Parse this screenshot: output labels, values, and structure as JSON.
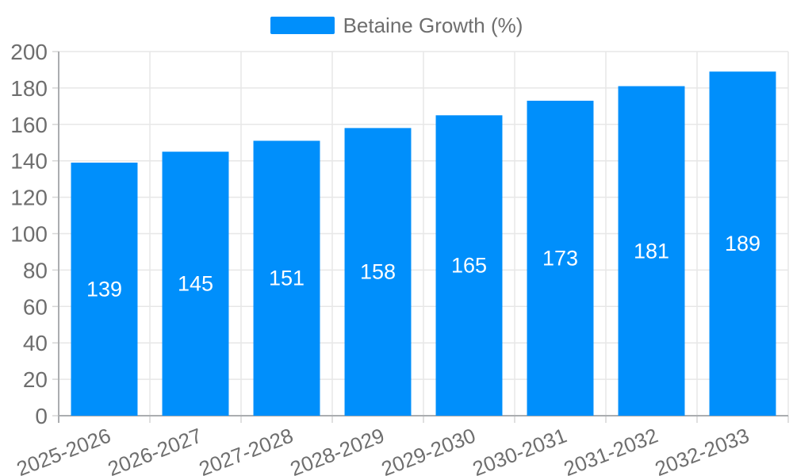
{
  "chart_data": {
    "type": "bar",
    "title": "",
    "xlabel": "",
    "ylabel": "",
    "categories": [
      "2025-2026",
      "2026-2027",
      "2027-2028",
      "2028-2029",
      "2029-2030",
      "2030-2031",
      "2031-2032",
      "2032-2033"
    ],
    "series": [
      {
        "name": "Betaine Growth (%)",
        "color": "#008FFB",
        "values": [
          139,
          145,
          151,
          158,
          165,
          173,
          181,
          189
        ]
      }
    ],
    "ylim": [
      0,
      200
    ],
    "yticks": [
      0,
      20,
      40,
      60,
      80,
      100,
      120,
      140,
      160,
      180,
      200
    ],
    "x_label_rotation_deg": -21,
    "grid": true,
    "legend_position": "top",
    "value_label_position": "inside-center",
    "colors": {
      "bar": "#008FFB",
      "value_label": "#FFFFFF",
      "axis_text": "#6E6E6E",
      "grid": "#E7E7E7",
      "tick": "#D6D6D6",
      "axis_line": "#ABADB0",
      "background": "#FFFFFF"
    }
  }
}
